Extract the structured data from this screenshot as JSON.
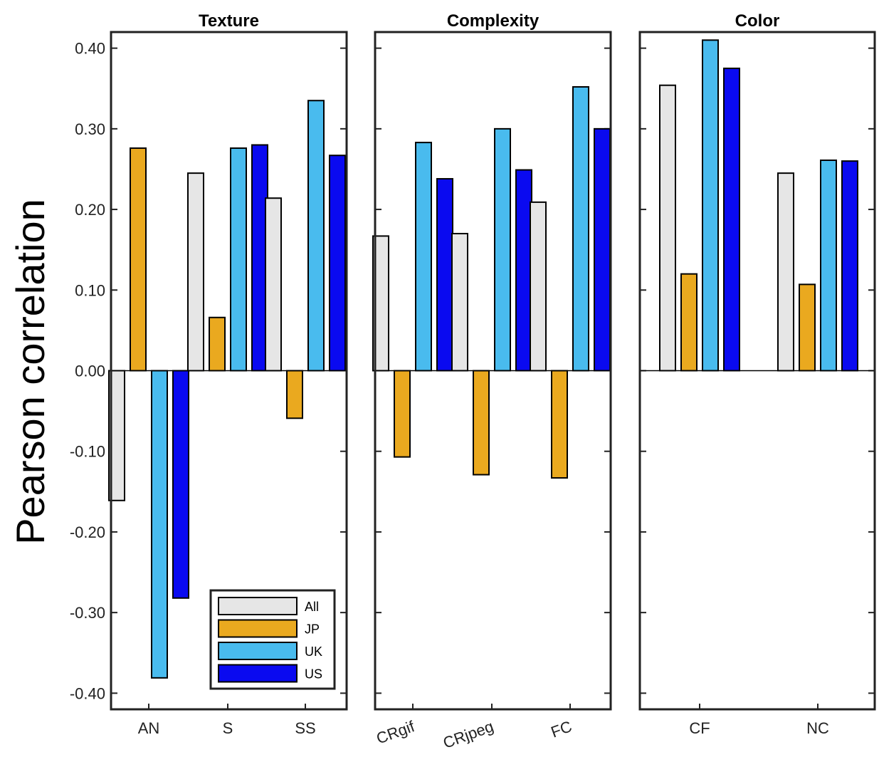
{
  "chart_data": {
    "type": "bar",
    "ylabel": "Pearson correlation",
    "ylim": [
      -0.42,
      0.42
    ],
    "yticks": [
      0.4,
      0.3,
      0.2,
      0.1,
      0.0,
      -0.1,
      -0.2,
      -0.3,
      -0.4
    ],
    "ytick_labels": [
      "0.40",
      "0.30",
      "0.20",
      "0.10",
      "0.00",
      "-0.10",
      "-0.20",
      "-0.30",
      "-0.40"
    ],
    "series_names": [
      "All",
      "JP",
      "UK",
      "US"
    ],
    "series_colors": [
      "#e6e6e6",
      "#eaa91f",
      "#49bbee",
      "#0a0af0"
    ],
    "legend_position": "bottom-right of first panel",
    "panels": [
      {
        "title": "Texture",
        "categories": [
          "AN",
          "S",
          "SS"
        ],
        "values": [
          [
            -0.161,
            0.276,
            -0.381,
            -0.282
          ],
          [
            0.245,
            0.066,
            0.276,
            0.28
          ],
          [
            0.214,
            -0.059,
            0.335,
            0.267
          ]
        ]
      },
      {
        "title": "Complexity",
        "categories": [
          "CRgif",
          "CRjpeg",
          "FC"
        ],
        "rotated_labels": true,
        "values": [
          [
            0.167,
            -0.107,
            0.283,
            0.238
          ],
          [
            0.17,
            -0.129,
            0.3,
            0.249
          ],
          [
            0.209,
            -0.133,
            0.352,
            0.3
          ]
        ]
      },
      {
        "title": "Color",
        "categories": [
          "CF",
          "NC"
        ],
        "values": [
          [
            0.354,
            0.12,
            0.41,
            0.375
          ],
          [
            0.245,
            0.107,
            0.261,
            0.26
          ]
        ]
      }
    ]
  }
}
